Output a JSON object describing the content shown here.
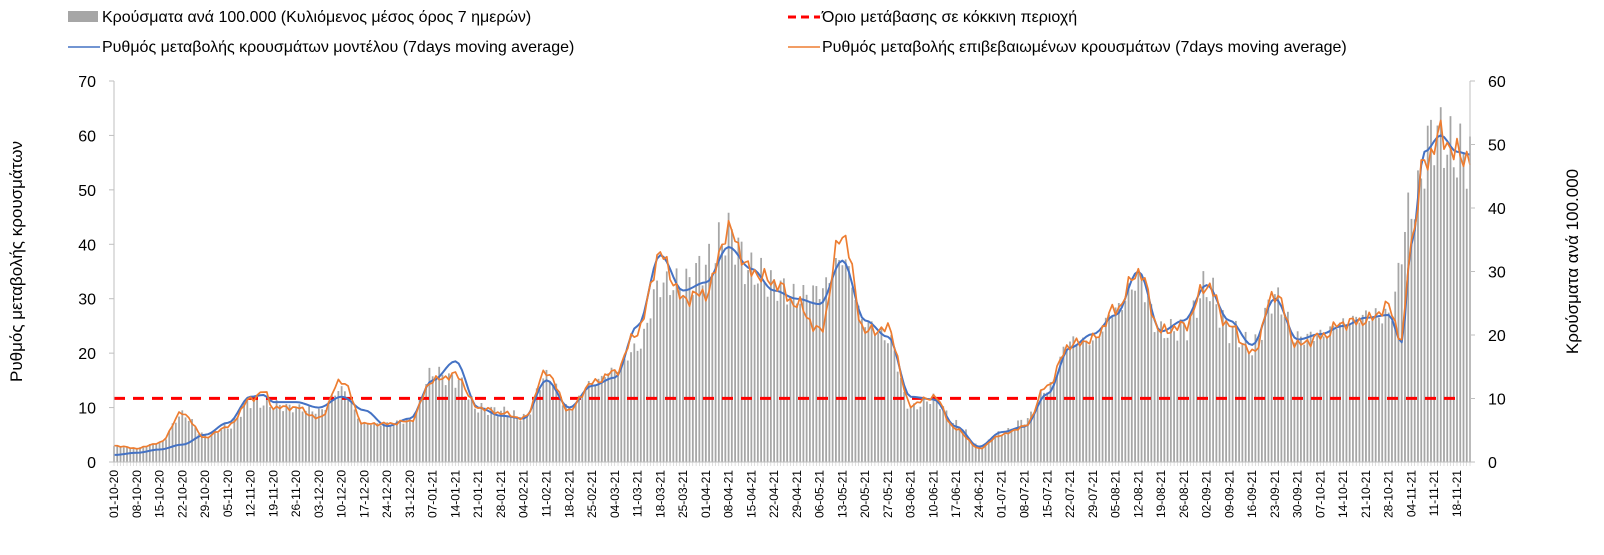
{
  "chart_data": {
    "type": "bar",
    "legend": {
      "placement": "top",
      "entries": [
        {
          "label": "Κρούσματα ανά 100.000 (Κυλιόμενος μέσος όρος 7 ημερών)",
          "color": "#a6a6a6",
          "kind": "bar"
        },
        {
          "label": "Όριο μετάβασης σε κόκκινη περιοχή",
          "color": "#ff0000",
          "kind": "dashed"
        },
        {
          "label": "Ρυθμός μεταβολής κρουσμάτων μοντέλου (7days moving average)",
          "color": "#4472c4",
          "kind": "line"
        },
        {
          "label": "Ρυθμός μεταβολής επιβεβαιωμένων κρουσμάτων (7days moving average)",
          "color": "#ed7d31",
          "kind": "line"
        }
      ]
    },
    "ylabel_left": "Ρυθμός μεταβολής κρουσμάτων",
    "ylabel_right": "Κρούσματα ανά 100.000",
    "ylim_left": [
      0,
      70
    ],
    "ylim_right": [
      0,
      60
    ],
    "yticks_left": [
      0,
      10,
      20,
      30,
      40,
      50,
      60,
      70
    ],
    "yticks_right": [
      0,
      10,
      20,
      30,
      40,
      50,
      60
    ],
    "x_start": "2020-10-01",
    "x_end": "2021-11-22",
    "x_tick_labels": [
      "01-10-20",
      "08-10-20",
      "15-10-20",
      "22-10-20",
      "29-10-20",
      "05-11-20",
      "12-11-20",
      "19-11-20",
      "26-11-20",
      "03-12-20",
      "10-12-20",
      "17-12-20",
      "24-12-20",
      "31-12-20",
      "07-01-21",
      "14-01-21",
      "21-01-21",
      "28-01-21",
      "04-02-21",
      "11-02-21",
      "18-02-21",
      "25-02-21",
      "04-03-21",
      "11-03-21",
      "18-03-21",
      "25-03-21",
      "01-04-21",
      "08-04-21",
      "15-04-21",
      "22-04-21",
      "29-04-21",
      "06-05-21",
      "13-05-21",
      "20-05-21",
      "27-05-21",
      "03-06-21",
      "10-06-21",
      "17-06-21",
      "24-06-21",
      "01-07-21",
      "08-07-21",
      "15-07-21",
      "22-07-21",
      "29-07-21",
      "05-08-21",
      "12-08-21",
      "19-08-21",
      "26-08-21",
      "02-09-21",
      "09-09-21",
      "16-09-21",
      "23-09-21",
      "30-09-21",
      "07-10-21",
      "14-10-21",
      "21-10-21",
      "28-10-21",
      "04-11-21",
      "11-11-21",
      "18-11-21"
    ],
    "threshold": {
      "axis": "left",
      "value": 11.7
    },
    "series": [
      {
        "name": "Κρούσματα ανά 100.000 (Κυλιόμενος μέσος όρος 7 ημερών)",
        "axis": "right",
        "type": "bar",
        "color": "#a6a6a6",
        "points": [
          [
            "2020-10-01",
            2.5
          ],
          [
            "2020-10-08",
            2.2
          ],
          [
            "2020-10-15",
            3.0
          ],
          [
            "2020-10-22",
            7.5
          ],
          [
            "2020-10-29",
            4.2
          ],
          [
            "2020-11-05",
            5.5
          ],
          [
            "2020-11-12",
            9.5
          ],
          [
            "2020-11-19",
            9.0
          ],
          [
            "2020-11-26",
            8.5
          ],
          [
            "2020-12-03",
            8.0
          ],
          [
            "2020-12-10",
            11.5
          ],
          [
            "2020-12-17",
            6.0
          ],
          [
            "2020-12-24",
            6.0
          ],
          [
            "2020-12-31",
            6.5
          ],
          [
            "2021-01-07",
            14.0
          ],
          [
            "2021-01-14",
            13.0
          ],
          [
            "2021-01-21",
            8.5
          ],
          [
            "2021-01-28",
            8.0
          ],
          [
            "2021-02-04",
            7.0
          ],
          [
            "2021-02-11",
            13.5
          ],
          [
            "2021-02-18",
            8.5
          ],
          [
            "2021-02-25",
            12.5
          ],
          [
            "2021-03-04",
            14.5
          ],
          [
            "2021-03-11",
            18.0
          ],
          [
            "2021-03-18",
            28.0
          ],
          [
            "2021-03-25",
            28.0
          ],
          [
            "2021-04-01",
            31.0
          ],
          [
            "2021-04-08",
            36.0
          ],
          [
            "2021-04-15",
            30.0
          ],
          [
            "2021-04-22",
            28.0
          ],
          [
            "2021-04-29",
            26.0
          ],
          [
            "2021-05-06",
            27.0
          ],
          [
            "2021-05-13",
            32.0
          ],
          [
            "2021-05-20",
            22.0
          ],
          [
            "2021-05-27",
            19.5
          ],
          [
            "2021-06-03",
            8.5
          ],
          [
            "2021-06-10",
            10.0
          ],
          [
            "2021-06-17",
            6.0
          ],
          [
            "2021-06-24",
            2.5
          ],
          [
            "2021-07-01",
            4.5
          ],
          [
            "2021-07-08",
            6.5
          ],
          [
            "2021-07-15",
            11.5
          ],
          [
            "2021-07-22",
            19.0
          ],
          [
            "2021-07-29",
            19.0
          ],
          [
            "2021-08-05",
            24.0
          ],
          [
            "2021-08-12",
            28.5
          ],
          [
            "2021-08-19",
            20.5
          ],
          [
            "2021-08-26",
            21.0
          ],
          [
            "2021-09-02",
            27.5
          ],
          [
            "2021-09-09",
            21.0
          ],
          [
            "2021-09-16",
            18.0
          ],
          [
            "2021-09-23",
            26.0
          ],
          [
            "2021-09-30",
            19.5
          ],
          [
            "2021-10-07",
            20.0
          ],
          [
            "2021-10-14",
            22.0
          ],
          [
            "2021-10-21",
            23.0
          ],
          [
            "2021-10-28",
            23.0
          ],
          [
            "2021-11-04",
            40.0
          ],
          [
            "2021-11-11",
            52.0
          ],
          [
            "2021-11-18",
            48.5
          ],
          [
            "2021-11-22",
            48.0
          ]
        ]
      },
      {
        "name": "Ρυθμός μεταβολής κρουσμάτων μοντέλου (7days moving average)",
        "axis": "left",
        "type": "line",
        "color": "#4472c4",
        "points": [
          [
            "2020-10-01",
            1.3
          ],
          [
            "2020-10-08",
            1.7
          ],
          [
            "2020-10-15",
            2.3
          ],
          [
            "2020-10-22",
            3.2
          ],
          [
            "2020-10-29",
            5.0
          ],
          [
            "2020-11-05",
            7.2
          ],
          [
            "2020-11-12",
            12.0
          ],
          [
            "2020-11-16",
            12.3
          ],
          [
            "2020-11-19",
            11.0
          ],
          [
            "2020-11-26",
            11.0
          ],
          [
            "2020-12-03",
            10.0
          ],
          [
            "2020-12-10",
            12.0
          ],
          [
            "2020-12-17",
            9.5
          ],
          [
            "2020-12-24",
            6.6
          ],
          [
            "2020-12-31",
            8.0
          ],
          [
            "2021-01-07",
            15.0
          ],
          [
            "2021-01-14",
            18.5
          ],
          [
            "2021-01-21",
            10.0
          ],
          [
            "2021-01-28",
            8.5
          ],
          [
            "2021-02-04",
            8.0
          ],
          [
            "2021-02-11",
            15.0
          ],
          [
            "2021-02-18",
            10.0
          ],
          [
            "2021-02-25",
            14.0
          ],
          [
            "2021-03-04",
            15.5
          ],
          [
            "2021-03-11",
            25.0
          ],
          [
            "2021-03-18",
            38.0
          ],
          [
            "2021-03-25",
            31.5
          ],
          [
            "2021-04-01",
            33.0
          ],
          [
            "2021-04-08",
            39.5
          ],
          [
            "2021-04-15",
            35.5
          ],
          [
            "2021-04-22",
            31.5
          ],
          [
            "2021-04-29",
            30.0
          ],
          [
            "2021-05-06",
            29.0
          ],
          [
            "2021-05-13",
            37.0
          ],
          [
            "2021-05-20",
            26.0
          ],
          [
            "2021-05-27",
            23.0
          ],
          [
            "2021-06-03",
            12.0
          ],
          [
            "2021-06-10",
            11.5
          ],
          [
            "2021-06-17",
            6.5
          ],
          [
            "2021-06-24",
            2.8
          ],
          [
            "2021-07-01",
            5.5
          ],
          [
            "2021-07-08",
            6.5
          ],
          [
            "2021-07-15",
            12.5
          ],
          [
            "2021-07-22",
            21.0
          ],
          [
            "2021-07-29",
            23.5
          ],
          [
            "2021-08-05",
            27.0
          ],
          [
            "2021-08-12",
            35.0
          ],
          [
            "2021-08-19",
            24.0
          ],
          [
            "2021-08-26",
            26.0
          ],
          [
            "2021-09-02",
            32.5
          ],
          [
            "2021-09-09",
            26.0
          ],
          [
            "2021-09-16",
            21.5
          ],
          [
            "2021-09-23",
            30.0
          ],
          [
            "2021-09-30",
            22.5
          ],
          [
            "2021-10-07",
            23.5
          ],
          [
            "2021-10-14",
            25.0
          ],
          [
            "2021-10-21",
            26.5
          ],
          [
            "2021-10-28",
            27.0
          ],
          [
            "2021-11-01",
            22.0
          ],
          [
            "2021-11-04",
            40.0
          ],
          [
            "2021-11-08",
            57.0
          ],
          [
            "2021-11-13",
            60.0
          ],
          [
            "2021-11-18",
            57.0
          ],
          [
            "2021-11-22",
            56.5
          ]
        ]
      },
      {
        "name": "Ρυθμός μεταβολής επιβεβαιωμένων κρουσμάτων (7days moving average)",
        "axis": "left",
        "type": "line",
        "color": "#ed7d31",
        "points": [
          [
            "2020-10-01",
            3.0
          ],
          [
            "2020-10-08",
            2.5
          ],
          [
            "2020-10-15",
            3.5
          ],
          [
            "2020-10-22",
            9.0
          ],
          [
            "2020-10-29",
            4.5
          ],
          [
            "2020-11-05",
            6.5
          ],
          [
            "2020-11-12",
            11.5
          ],
          [
            "2020-11-16",
            13.0
          ],
          [
            "2020-11-19",
            10.0
          ],
          [
            "2020-11-26",
            10.0
          ],
          [
            "2020-12-03",
            8.0
          ],
          [
            "2020-12-10",
            15.0
          ],
          [
            "2020-12-17",
            7.0
          ],
          [
            "2020-12-24",
            7.0
          ],
          [
            "2020-12-31",
            7.5
          ],
          [
            "2021-01-07",
            15.0
          ],
          [
            "2021-01-14",
            16.0
          ],
          [
            "2021-01-21",
            10.0
          ],
          [
            "2021-01-28",
            9.0
          ],
          [
            "2021-02-04",
            8.0
          ],
          [
            "2021-02-11",
            16.5
          ],
          [
            "2021-02-18",
            9.5
          ],
          [
            "2021-02-25",
            14.5
          ],
          [
            "2021-03-04",
            16.5
          ],
          [
            "2021-03-11",
            24.0
          ],
          [
            "2021-03-18",
            38.0
          ],
          [
            "2021-03-25",
            30.0
          ],
          [
            "2021-04-01",
            31.0
          ],
          [
            "2021-04-08",
            42.5
          ],
          [
            "2021-04-15",
            35.0
          ],
          [
            "2021-04-22",
            33.0
          ],
          [
            "2021-04-29",
            29.0
          ],
          [
            "2021-05-06",
            24.0
          ],
          [
            "2021-05-13",
            42.0
          ],
          [
            "2021-05-20",
            24.0
          ],
          [
            "2021-05-27",
            24.5
          ],
          [
            "2021-06-03",
            10.5
          ],
          [
            "2021-06-10",
            12.0
          ],
          [
            "2021-06-17",
            6.0
          ],
          [
            "2021-06-24",
            2.5
          ],
          [
            "2021-07-01",
            5.0
          ],
          [
            "2021-07-08",
            6.5
          ],
          [
            "2021-07-15",
            14.0
          ],
          [
            "2021-07-22",
            21.5
          ],
          [
            "2021-07-29",
            22.5
          ],
          [
            "2021-08-05",
            28.0
          ],
          [
            "2021-08-12",
            35.0
          ],
          [
            "2021-08-19",
            24.0
          ],
          [
            "2021-08-26",
            25.0
          ],
          [
            "2021-09-02",
            32.5
          ],
          [
            "2021-09-09",
            25.0
          ],
          [
            "2021-09-16",
            20.0
          ],
          [
            "2021-09-23",
            31.0
          ],
          [
            "2021-09-30",
            21.5
          ],
          [
            "2021-10-07",
            23.0
          ],
          [
            "2021-10-14",
            25.5
          ],
          [
            "2021-10-21",
            26.0
          ],
          [
            "2021-10-28",
            28.5
          ],
          [
            "2021-11-01",
            22.5
          ],
          [
            "2021-11-04",
            41.0
          ],
          [
            "2021-11-08",
            55.0
          ],
          [
            "2021-11-13",
            60.0
          ],
          [
            "2021-11-18",
            56.5
          ],
          [
            "2021-11-22",
            56.0
          ]
        ]
      }
    ]
  }
}
